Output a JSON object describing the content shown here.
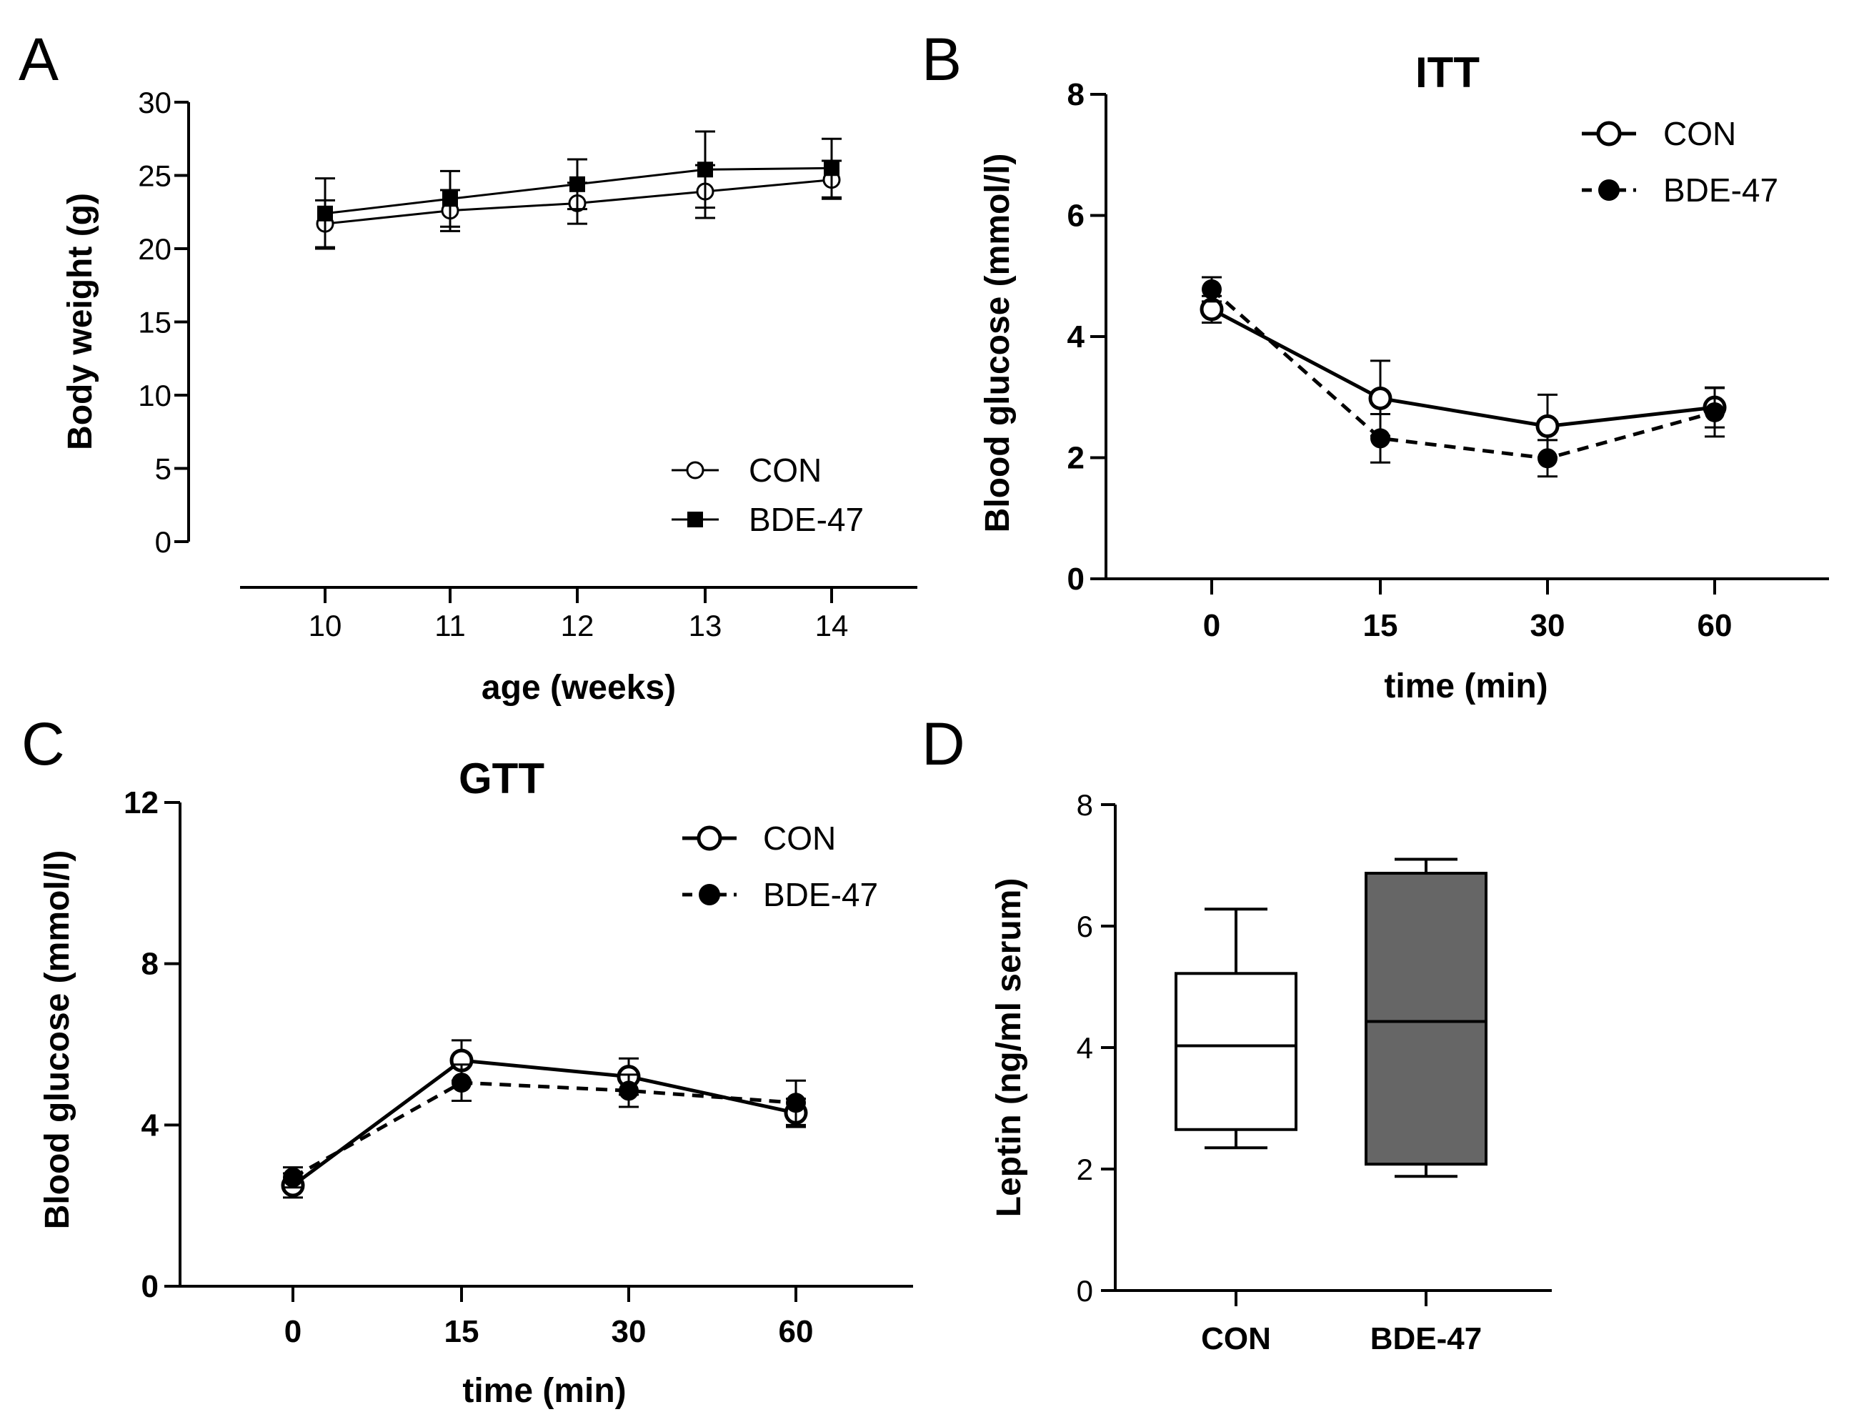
{
  "chart_data": [
    {
      "panel": "A",
      "type": "line",
      "title": "",
      "xlabel": "age (weeks)",
      "ylabel": "Body weight (g)",
      "x": [
        10,
        11,
        12,
        13,
        14
      ],
      "ylim": [
        0,
        30
      ],
      "y_ticks": [
        0,
        5,
        10,
        15,
        20,
        25,
        30
      ],
      "grid": false,
      "legend_position": "bottom-right",
      "series": [
        {
          "name": "CON",
          "marker": "open-circle",
          "line": "solid",
          "values": [
            21.7,
            22.6,
            23.1,
            23.9,
            24.7
          ],
          "error": [
            1.6,
            1.4,
            1.4,
            1.8,
            1.3
          ]
        },
        {
          "name": "BDE-47",
          "marker": "filled-square",
          "line": "solid",
          "values": [
            22.4,
            23.4,
            24.4,
            25.4,
            25.5
          ],
          "error": [
            2.4,
            1.9,
            1.7,
            2.6,
            2.0
          ]
        }
      ]
    },
    {
      "panel": "B",
      "type": "line",
      "title": "ITT",
      "xlabel": "time (min)",
      "ylabel": "Blood glucose (mmol/l)",
      "categories": [
        "0",
        "15",
        "30",
        "60"
      ],
      "ylim": [
        0,
        8
      ],
      "y_ticks": [
        0,
        2,
        4,
        6,
        8
      ],
      "grid": false,
      "legend_position": "top-right",
      "series": [
        {
          "name": "CON",
          "marker": "open-circle",
          "line": "solid",
          "values": [
            4.45,
            2.98,
            2.52,
            2.83
          ],
          "error": [
            0.22,
            0.62,
            0.52,
            0.33
          ]
        },
        {
          "name": "BDE-47",
          "marker": "filled-circle",
          "line": "dashed",
          "values": [
            4.78,
            2.32,
            1.99,
            2.75
          ],
          "error": [
            0.2,
            0.4,
            0.3,
            0.4
          ]
        }
      ]
    },
    {
      "panel": "C",
      "type": "line",
      "title": "GTT",
      "xlabel": "time (min)",
      "ylabel": "Blood glucose (mmol/l)",
      "categories": [
        "0",
        "15",
        "30",
        "60"
      ],
      "ylim": [
        0,
        12
      ],
      "y_ticks": [
        0,
        4,
        8,
        12
      ],
      "grid": false,
      "legend_position": "top-right",
      "series": [
        {
          "name": "CON",
          "marker": "open-circle",
          "line": "solid",
          "values": [
            2.5,
            5.6,
            5.2,
            4.3
          ],
          "error": [
            0.3,
            0.5,
            0.45,
            0.35
          ]
        },
        {
          "name": "BDE-47",
          "marker": "filled-circle",
          "line": "dashed",
          "values": [
            2.7,
            5.05,
            4.85,
            4.55
          ],
          "error": [
            0.25,
            0.45,
            0.4,
            0.55
          ]
        }
      ]
    },
    {
      "panel": "D",
      "type": "box",
      "title": "",
      "xlabel": "",
      "ylabel": "Leptin (ng/ml serum)",
      "categories": [
        "CON",
        "BDE-47"
      ],
      "ylim": [
        0,
        8
      ],
      "y_ticks": [
        0,
        2,
        4,
        6,
        8
      ],
      "grid": false,
      "boxes": [
        {
          "name": "CON",
          "min": 2.35,
          "q1": 2.65,
          "median": 4.03,
          "q3": 5.22,
          "max": 6.28,
          "fill": "#ffffff"
        },
        {
          "name": "BDE-47",
          "min": 1.88,
          "q1": 2.08,
          "median": 4.43,
          "q3": 6.87,
          "max": 7.1,
          "fill": "#666666"
        }
      ]
    }
  ]
}
